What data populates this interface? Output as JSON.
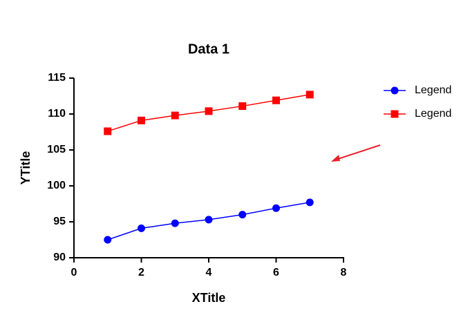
{
  "chart_data": {
    "type": "line",
    "title": "Data 1",
    "x_label": "XTitle",
    "y_label": "YTitle",
    "x": [
      1,
      2,
      3,
      4,
      5,
      6,
      7
    ],
    "series": [
      {
        "name": "Legend",
        "color": "#0000ff",
        "marker": "circle",
        "values": [
          92.5,
          94.1,
          94.8,
          95.3,
          96.0,
          96.9,
          97.7
        ]
      },
      {
        "name": "Legend",
        "color": "#ff0000",
        "marker": "square",
        "values": [
          107.6,
          109.1,
          109.8,
          110.4,
          111.1,
          111.9,
          112.7
        ]
      }
    ],
    "xlim": [
      0,
      8
    ],
    "xticks": [
      0,
      2,
      4,
      6,
      8
    ],
    "ylim": [
      90,
      115
    ],
    "yticks": [
      90,
      95,
      100,
      105,
      110,
      115
    ],
    "grid": false,
    "legend": "right"
  }
}
